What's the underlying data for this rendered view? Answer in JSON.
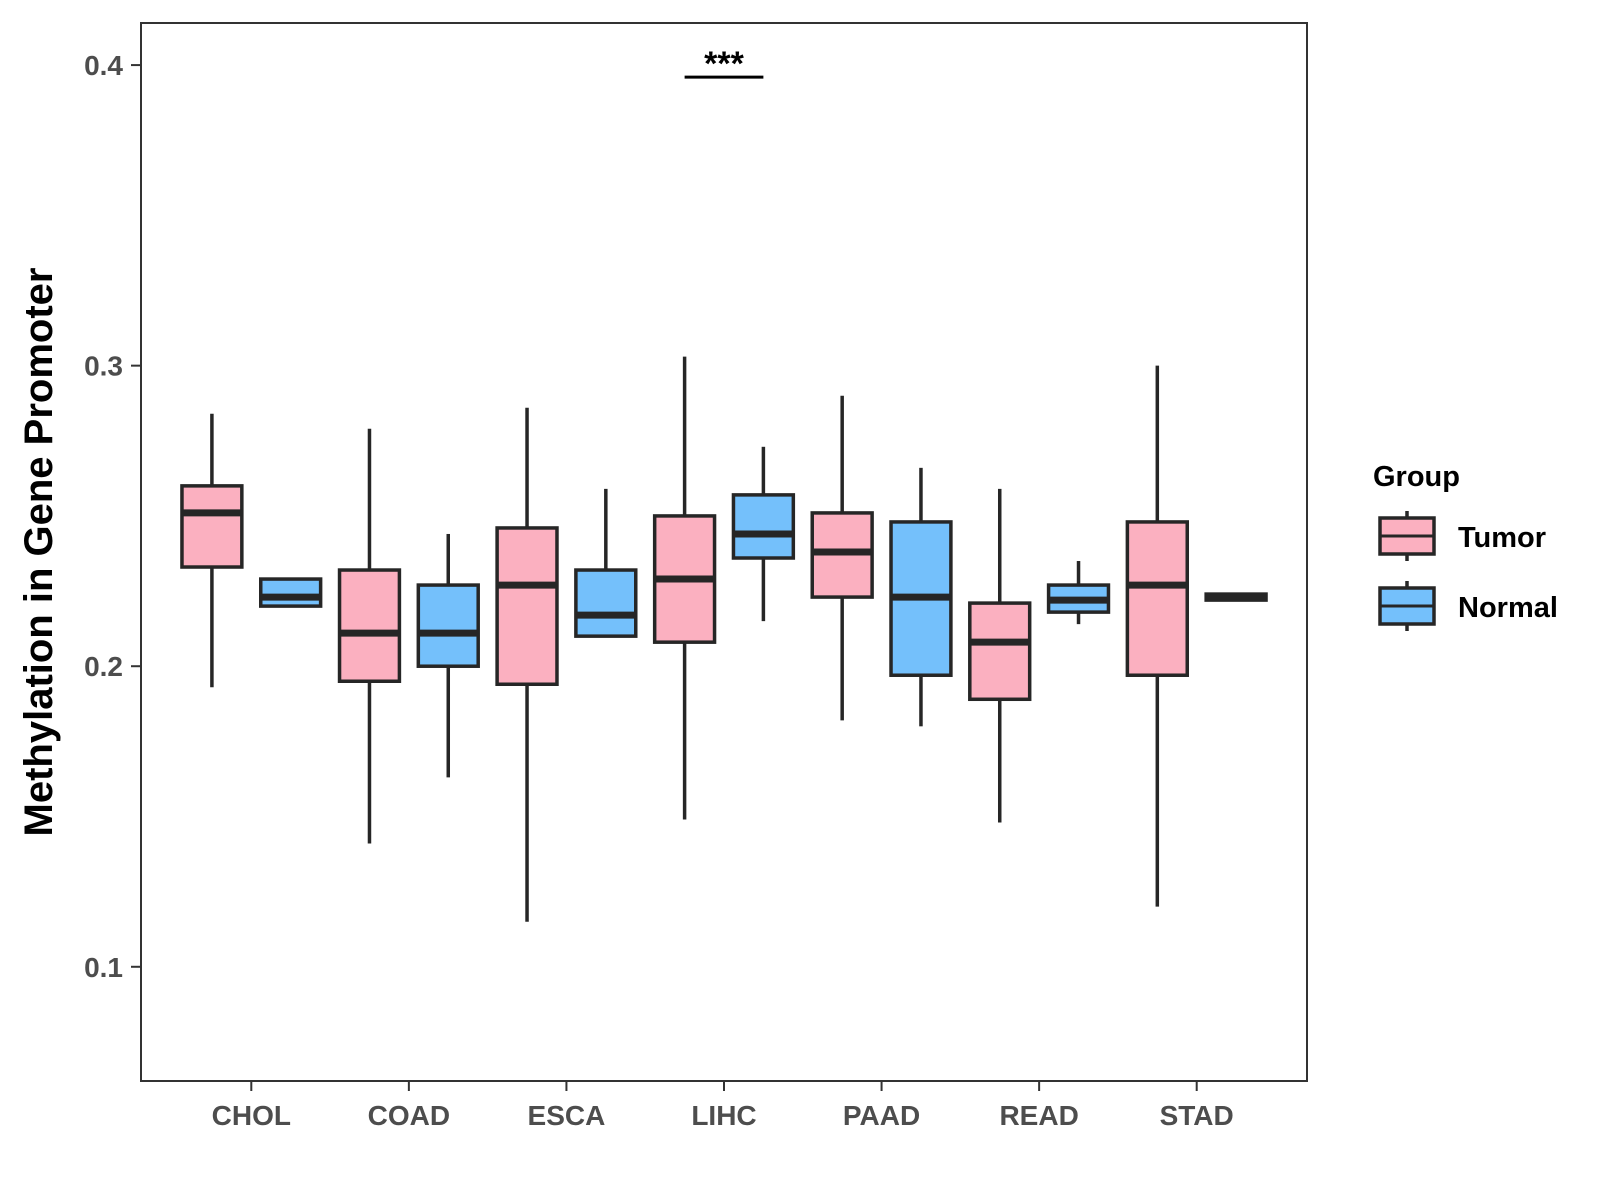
{
  "chart_data": {
    "type": "boxplot",
    "title": "",
    "xlabel": "",
    "ylabel": "Methylation in Gene Promoter",
    "ylim": [
      0.062,
      0.414
    ],
    "y_ticks": [
      "0.1",
      "0.2",
      "0.3",
      "0.4"
    ],
    "y_tick_values": [
      0.1,
      0.2,
      0.3,
      0.4
    ],
    "categories": [
      "CHOL",
      "COAD",
      "ESCA",
      "LIHC",
      "PAAD",
      "READ",
      "STAD"
    ],
    "grid": false,
    "legend": {
      "title": "Group",
      "position": "right",
      "entries": [
        "Tumor",
        "Normal"
      ]
    },
    "series": [
      {
        "name": "Tumor",
        "color": "#fbb0c0",
        "boxes": [
          {
            "category": "CHOL",
            "min": 0.193,
            "q1": 0.233,
            "median": 0.251,
            "q3": 0.26,
            "max": 0.284
          },
          {
            "category": "COAD",
            "min": 0.141,
            "q1": 0.195,
            "median": 0.211,
            "q3": 0.232,
            "max": 0.279
          },
          {
            "category": "ESCA",
            "min": 0.115,
            "q1": 0.194,
            "median": 0.227,
            "q3": 0.246,
            "max": 0.286
          },
          {
            "category": "LIHC",
            "min": 0.149,
            "q1": 0.208,
            "median": 0.229,
            "q3": 0.25,
            "max": 0.303
          },
          {
            "category": "PAAD",
            "min": 0.182,
            "q1": 0.223,
            "median": 0.238,
            "q3": 0.251,
            "max": 0.29
          },
          {
            "category": "READ",
            "min": 0.148,
            "q1": 0.189,
            "median": 0.208,
            "q3": 0.221,
            "max": 0.259
          },
          {
            "category": "STAD",
            "min": 0.12,
            "q1": 0.197,
            "median": 0.227,
            "q3": 0.248,
            "max": 0.3
          }
        ]
      },
      {
        "name": "Normal",
        "color": "#74c0fb",
        "boxes": [
          {
            "category": "CHOL",
            "min": 0.22,
            "q1": 0.22,
            "median": 0.223,
            "q3": 0.229,
            "max": 0.229
          },
          {
            "category": "COAD",
            "min": 0.163,
            "q1": 0.2,
            "median": 0.211,
            "q3": 0.227,
            "max": 0.244
          },
          {
            "category": "ESCA",
            "min": 0.21,
            "q1": 0.21,
            "median": 0.217,
            "q3": 0.232,
            "max": 0.259
          },
          {
            "category": "LIHC",
            "min": 0.215,
            "q1": 0.236,
            "median": 0.244,
            "q3": 0.257,
            "max": 0.273
          },
          {
            "category": "PAAD",
            "min": 0.18,
            "q1": 0.197,
            "median": 0.223,
            "q3": 0.248,
            "max": 0.266
          },
          {
            "category": "READ",
            "min": 0.214,
            "q1": 0.218,
            "median": 0.222,
            "q3": 0.227,
            "max": 0.235
          },
          {
            "category": "STAD",
            "min": 0.222,
            "q1": 0.222,
            "median": 0.223,
            "q3": 0.224,
            "max": 0.224
          }
        ]
      }
    ],
    "annotations": [
      {
        "category": "LIHC",
        "text": "***",
        "y": 0.396
      }
    ]
  }
}
